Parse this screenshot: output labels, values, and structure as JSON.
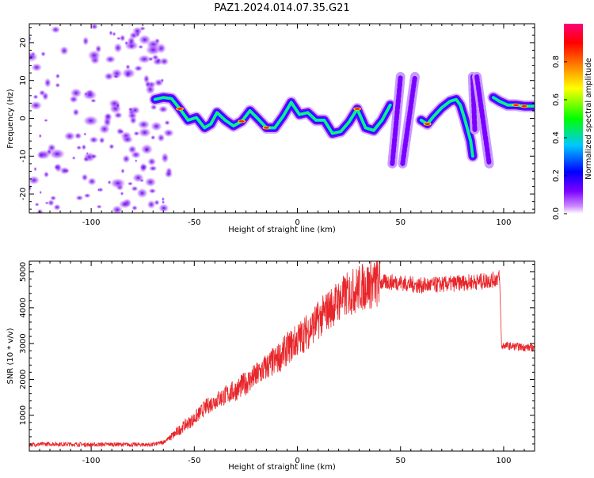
{
  "chart_data": [
    {
      "type": "heatmap",
      "title": "PAZ1.2024.014.07.35.G21",
      "xlabel": "Height of straight line (km)",
      "ylabel": "Frequency (Hz)",
      "xlim": [
        -130,
        115
      ],
      "ylim": [
        -25,
        25
      ],
      "xticks": [
        -100,
        -50,
        0,
        50,
        100
      ],
      "yticks": [
        -20,
        -10,
        0,
        10,
        20
      ],
      "colorbar": {
        "label": "Normalized spectral amplitude",
        "range": [
          0.0,
          1.0
        ],
        "ticks": [
          0.0,
          0.2,
          0.4,
          0.6,
          0.8
        ],
        "colormap": [
          "#ffffff",
          "#cc88ff",
          "#7a00ff",
          "#0000ff",
          "#00c8ff",
          "#00ff00",
          "#ffff00",
          "#ff8000",
          "#ff0000",
          "#ff0077"
        ]
      },
      "ridge": {
        "x": [
          -69,
          -65,
          -61,
          -57,
          -53,
          -49,
          -45,
          -42,
          -39,
          -35,
          -31,
          -27,
          -23,
          -19,
          -15,
          -11,
          -7,
          -3,
          1,
          5,
          9,
          13,
          17,
          21,
          25,
          29,
          33,
          37,
          41,
          45
        ],
        "y": [
          5,
          5.5,
          5.2,
          2.5,
          -0.5,
          0.2,
          -2.5,
          -1.5,
          1.5,
          -0.5,
          -2,
          -0.8,
          2,
          -0.2,
          -2.5,
          -2.5,
          0.5,
          4.2,
          1,
          1.5,
          -0.5,
          -0.5,
          -4,
          -3.5,
          -1,
          2.5,
          -2.5,
          -3.2,
          -0.5,
          3.5
        ]
      },
      "ridge2": {
        "x": [
          60,
          63,
          66,
          70,
          74,
          77,
          79,
          81,
          84,
          85
        ],
        "y": [
          -0.5,
          -1.5,
          0.5,
          2.8,
          4.5,
          5,
          3.5,
          0,
          -6,
          -10
        ]
      },
      "ridge3": {
        "x": [
          95,
          98,
          102,
          106,
          110,
          115
        ],
        "y": [
          5.5,
          4.5,
          3.5,
          3.5,
          3.2,
          3.2
        ]
      },
      "streaks": [
        {
          "x": [
            46,
            50
          ],
          "y": [
            -12,
            11
          ]
        },
        {
          "x": [
            51,
            57
          ],
          "y": [
            -12,
            11
          ]
        },
        {
          "x": [
            85,
            86
          ],
          "y": [
            11,
            -3
          ]
        },
        {
          "x": [
            87,
            93
          ],
          "y": [
            11,
            -12
          ]
        }
      ]
    },
    {
      "type": "line",
      "xlabel": "Height of straight line (km)",
      "ylabel": "SNR (10 * v/v)",
      "xlim": [
        -130,
        115
      ],
      "ylim": [
        0,
        5300
      ],
      "xticks": [
        -100,
        -50,
        0,
        50,
        100
      ],
      "yticks": [
        1000,
        2000,
        3000,
        4000,
        5000
      ],
      "color": "#e8262a",
      "x": [
        -130,
        -120,
        -110,
        -100,
        -90,
        -80,
        -70,
        -65,
        -60,
        -55,
        -50,
        -45,
        -40,
        -35,
        -30,
        -25,
        -20,
        -15,
        -10,
        -5,
        0,
        5,
        10,
        15,
        20,
        25,
        30,
        35,
        40,
        45,
        50,
        55,
        60,
        65,
        70,
        75,
        80,
        85,
        90,
        95,
        98,
        99,
        100,
        105,
        110,
        115
      ],
      "y": [
        180,
        200,
        190,
        180,
        190,
        180,
        180,
        250,
        450,
        700,
        900,
        1200,
        1400,
        1550,
        1700,
        1900,
        2100,
        2350,
        2550,
        2850,
        3100,
        3350,
        3650,
        3950,
        4200,
        4400,
        4550,
        4650,
        4700,
        4720,
        4700,
        4650,
        4620,
        4630,
        4650,
        4670,
        4700,
        4720,
        4740,
        4780,
        4850,
        2900,
        2950,
        2920,
        2900,
        2880
      ]
    }
  ]
}
